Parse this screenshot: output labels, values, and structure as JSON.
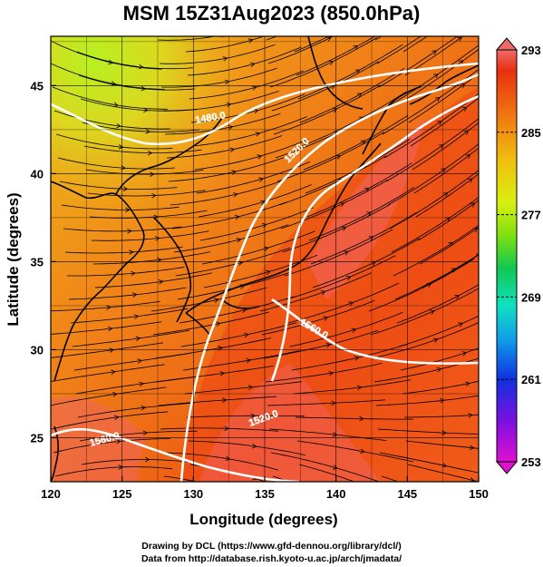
{
  "title": "MSM 15Z31Aug2023 (850.0hPa)",
  "chart_data": {
    "type": "heatmap",
    "title": "MSM 15Z31Aug2023 (850.0hPa)",
    "xlabel": "Longitude (degrees)",
    "ylabel": "Latitude  (degrees)",
    "xlim": [
      120,
      150
    ],
    "ylim": [
      22.5,
      47.8
    ],
    "x_ticks": [
      "120",
      "125",
      "130",
      "135",
      "140",
      "145",
      "150"
    ],
    "y_ticks": [
      "25",
      "30",
      "35",
      "40",
      "45"
    ],
    "grid": true,
    "colorbar": {
      "ticks": [
        "293",
        "285",
        "277",
        "269",
        "261",
        "253"
      ],
      "range": [
        253,
        293
      ],
      "colors": [
        "#e010d0",
        "#7a10e0",
        "#1030e0",
        "#10a0e8",
        "#10e0c0",
        "#10c850",
        "#80e010",
        "#d8f010",
        "#f0c010",
        "#f07010",
        "#e83010",
        "#f06a6a"
      ]
    },
    "contour_labels": [
      "1480.0",
      "1520.0",
      "1520.0",
      "1560.0",
      "1560.0"
    ],
    "colors": {
      "cool_region": "#c8ec20",
      "warm_region": "#f09018",
      "hot_region": "#ee4a14",
      "peak_region": "#f06464",
      "contour": "#ffffff",
      "streamline": "#000000",
      "coast": "#000000"
    }
  },
  "credits": {
    "line1": "Drawing by DCL (https://www.gfd-dennou.org/library/dcl/)",
    "line2": "Data from http://database.rish.kyoto-u.ac.jp/arch/jmadata/"
  }
}
